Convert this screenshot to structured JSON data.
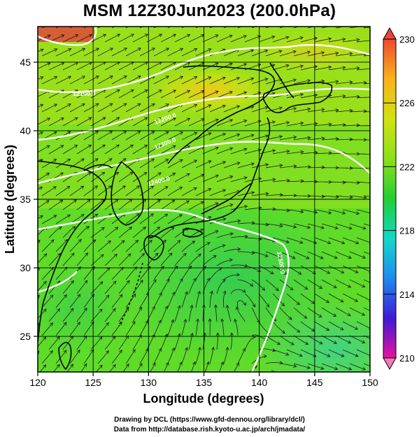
{
  "title": "MSM 12Z30Jun2023 (200.0hPa)",
  "x_axis": {
    "label": "Longitude (degrees)",
    "range": [
      120,
      150
    ],
    "ticks": [
      "120",
      "125",
      "130",
      "135",
      "140",
      "145",
      "150"
    ]
  },
  "y_axis": {
    "label": "Latitude  (degrees)",
    "range": [
      22.4,
      47.6
    ],
    "ticks": [
      "25",
      "30",
      "35",
      "40",
      "45"
    ]
  },
  "colorbar": {
    "range": [
      210,
      230
    ],
    "ticks": [
      "230",
      "226",
      "222",
      "218",
      "214",
      "210"
    ],
    "colors": [
      "#e8119e",
      "#3d1ad6",
      "#1e8bf0",
      "#13d7c9",
      "#22cf33",
      "#8ce019",
      "#d2e211",
      "#f8b21d",
      "#f04a2c"
    ]
  },
  "contour_labels": [
    "12100.0",
    "12200.0",
    "12300.0",
    "12400.0",
    "12500.0"
  ],
  "credits": {
    "line1": "Drawing by DCL (https://www.gfd-dennou.org/library/dcl/)",
    "line2": "Data from http://database.rish.kyoto-u.ac.jp/arch/jmadata/"
  }
}
